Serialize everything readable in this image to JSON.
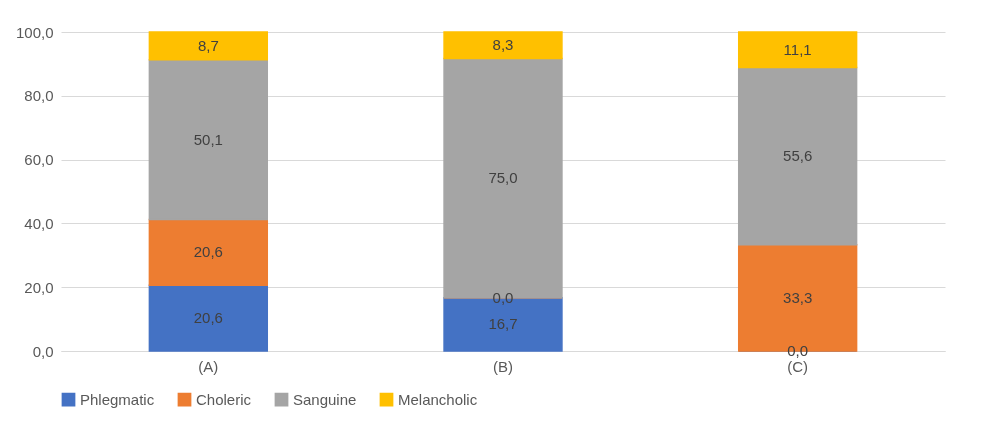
{
  "chart_data": {
    "type": "bar",
    "stacked": true,
    "categories": [
      "(A)",
      "(B)",
      "(C)"
    ],
    "series": [
      {
        "name": "Phlegmatic",
        "color": "#4472c4",
        "values": [
          20.6,
          16.7,
          0.0
        ],
        "value_labels": [
          "20,6",
          "16,7",
          "0,0"
        ]
      },
      {
        "name": "Choleric",
        "color": "#ed7d31",
        "values": [
          20.6,
          0.0,
          33.3
        ],
        "value_labels": [
          "20,6",
          "0,0",
          "33,3"
        ]
      },
      {
        "name": "Sanguine",
        "color": "#a5a5a5",
        "values": [
          50.1,
          75.0,
          55.6
        ],
        "value_labels": [
          "50,1",
          "75,0",
          "55,6"
        ]
      },
      {
        "name": "Melancholic",
        "color": "#ffc000",
        "values": [
          8.7,
          8.3,
          11.1
        ],
        "value_labels": [
          "8,7",
          "8,3",
          "11,1"
        ]
      }
    ],
    "ylim": [
      0,
      100
    ],
    "yticks": [
      {
        "value": 0,
        "label": "0,0"
      },
      {
        "value": 20,
        "label": "20,0"
      },
      {
        "value": 40,
        "label": "40,0"
      },
      {
        "value": 60,
        "label": "60,0"
      },
      {
        "value": 80,
        "label": "80,0"
      },
      {
        "value": 100,
        "label": "100,0"
      }
    ],
    "grid": "y",
    "legend": "bottom"
  }
}
